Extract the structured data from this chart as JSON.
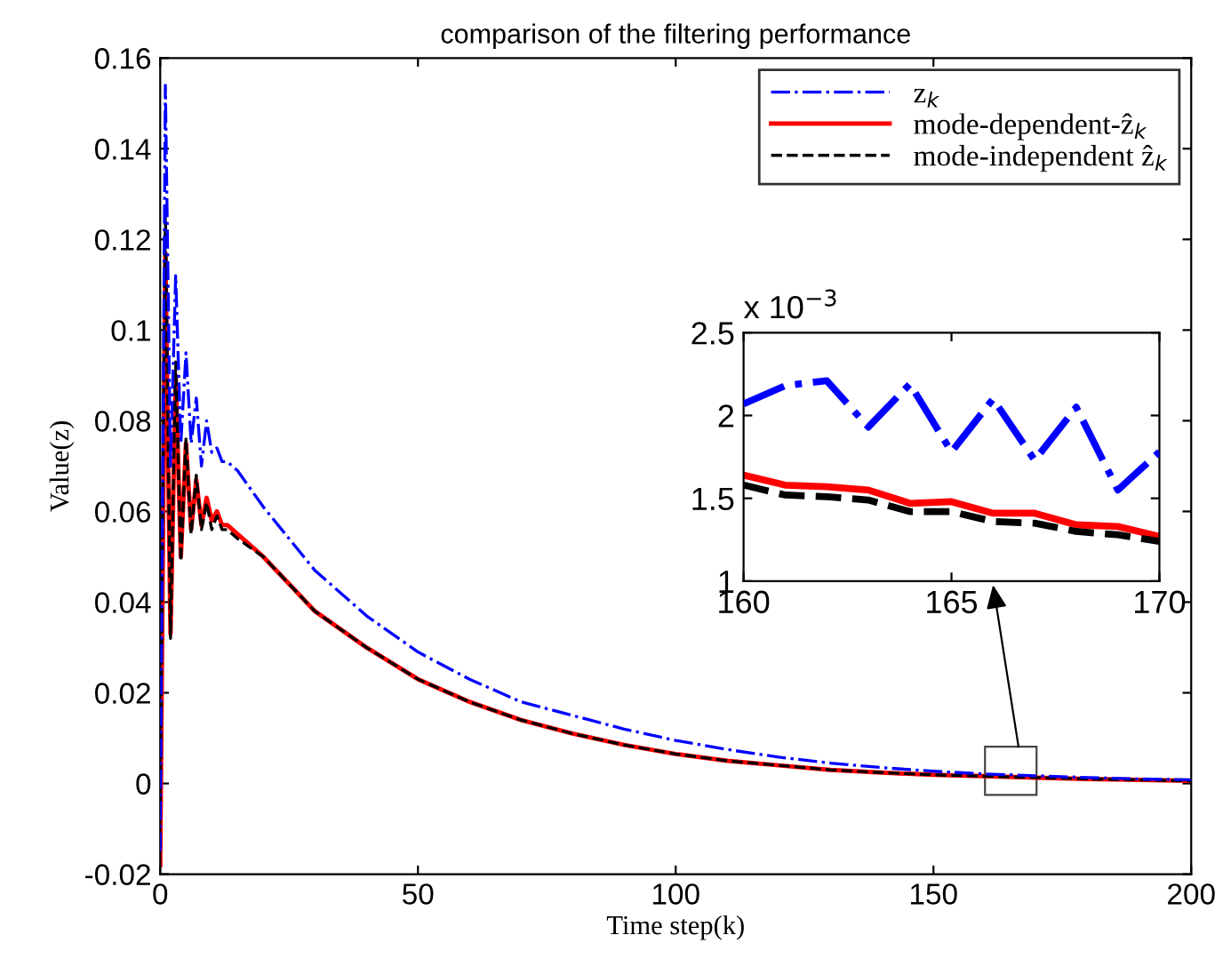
{
  "chart_data": [
    {
      "type": "line",
      "title": "comparison of the filtering performance",
      "xlabel": "Time step(k)",
      "ylabel": "Value(z)",
      "xlim": [
        0,
        200
      ],
      "xticks": [
        0,
        50,
        100,
        150,
        200
      ],
      "ylim": [
        -0.02,
        0.16
      ],
      "yticks": [
        -0.02,
        0,
        0.02,
        0.04,
        0.06,
        0.08,
        0.1,
        0.12,
        0.14,
        0.16
      ],
      "grid": false,
      "legend": "top right",
      "series": [
        {
          "name": "z$_{k}$",
          "color": "#0000ff",
          "line_style": "dashdot",
          "x": [
            0,
            1,
            2,
            3,
            4,
            5,
            6,
            7,
            8,
            9,
            10,
            11,
            12,
            13,
            15,
            20,
            25,
            30,
            40,
            50,
            60,
            70,
            80,
            90,
            100,
            110,
            120,
            130,
            140,
            150,
            160,
            170,
            180,
            190,
            200
          ],
          "values": [
            -0.015,
            0.154,
            0.07,
            0.112,
            0.075,
            0.095,
            0.075,
            0.085,
            0.07,
            0.08,
            0.073,
            0.074,
            0.071,
            0.071,
            0.069,
            0.061,
            0.054,
            0.047,
            0.037,
            0.029,
            0.023,
            0.018,
            0.015,
            0.012,
            0.0095,
            0.0075,
            0.0058,
            0.0045,
            0.0035,
            0.0027,
            0.0021,
            0.0017,
            0.0013,
            0.001,
            0.0008
          ]
        },
        {
          "name": "mode-dependent-ẑ$_{k}$",
          "color": "#ff0000",
          "line_style": "solid",
          "x": [
            0,
            1,
            2,
            3,
            4,
            5,
            6,
            7,
            8,
            9,
            10,
            11,
            12,
            13,
            15,
            20,
            25,
            30,
            40,
            50,
            60,
            70,
            80,
            90,
            100,
            110,
            120,
            130,
            140,
            150,
            160,
            170,
            180,
            190,
            200
          ],
          "values": [
            -0.018,
            0.117,
            0.033,
            0.09,
            0.05,
            0.075,
            0.056,
            0.067,
            0.057,
            0.063,
            0.058,
            0.06,
            0.057,
            0.057,
            0.055,
            0.05,
            0.044,
            0.038,
            0.03,
            0.023,
            0.018,
            0.014,
            0.011,
            0.0085,
            0.0065,
            0.005,
            0.004,
            0.003,
            0.0024,
            0.0019,
            0.0016,
            0.0013,
            0.001,
            0.0008,
            0.0006
          ]
        },
        {
          "name": "mode-independent ẑ$_{k}$",
          "color": "#000000",
          "line_style": "dashed",
          "x": [
            0,
            1,
            2,
            3,
            4,
            5,
            6,
            7,
            8,
            9,
            10,
            11,
            12,
            13,
            15,
            20,
            25,
            30,
            40,
            50,
            60,
            70,
            80,
            90,
            100,
            110,
            120,
            130,
            140,
            150,
            160,
            170,
            180,
            190,
            200
          ],
          "values": [
            -0.005,
            0.127,
            0.032,
            0.093,
            0.049,
            0.076,
            0.055,
            0.068,
            0.056,
            0.062,
            0.056,
            0.059,
            0.056,
            0.056,
            0.054,
            0.05,
            0.044,
            0.038,
            0.03,
            0.023,
            0.018,
            0.014,
            0.011,
            0.0085,
            0.0065,
            0.005,
            0.004,
            0.003,
            0.0024,
            0.0019,
            0.0016,
            0.0013,
            0.001,
            0.0008,
            0.0006
          ]
        }
      ]
    },
    {
      "type": "line",
      "xlim": [
        160,
        170
      ],
      "xticks": [
        160,
        165,
        170
      ],
      "ylim": [
        1,
        2.5
      ],
      "yticks": [
        1,
        1.5,
        2,
        2.5
      ],
      "grid": false,
      "annotations": [
        "x 10$^{−3}$"
      ],
      "series": [
        {
          "color": "#0000ff",
          "line_style": "dashdot",
          "x": [
            160,
            161,
            162,
            163,
            164,
            165,
            166,
            167,
            168,
            169,
            170
          ],
          "values": [
            2.07,
            2.18,
            2.21,
            1.93,
            2.19,
            1.78,
            2.1,
            1.73,
            2.05,
            1.55,
            1.78
          ]
        },
        {
          "color": "#ff0000",
          "line_style": "solid",
          "x": [
            160,
            161,
            162,
            163,
            164,
            165,
            166,
            167,
            168,
            169,
            170
          ],
          "values": [
            1.64,
            1.58,
            1.57,
            1.55,
            1.47,
            1.48,
            1.41,
            1.41,
            1.34,
            1.33,
            1.27
          ]
        },
        {
          "color": "#000000",
          "line_style": "dashed",
          "x": [
            160,
            161,
            162,
            163,
            164,
            165,
            166,
            167,
            168,
            169,
            170
          ],
          "values": [
            1.58,
            1.52,
            1.51,
            1.49,
            1.42,
            1.42,
            1.36,
            1.35,
            1.3,
            1.28,
            1.24
          ]
        }
      ]
    }
  ]
}
